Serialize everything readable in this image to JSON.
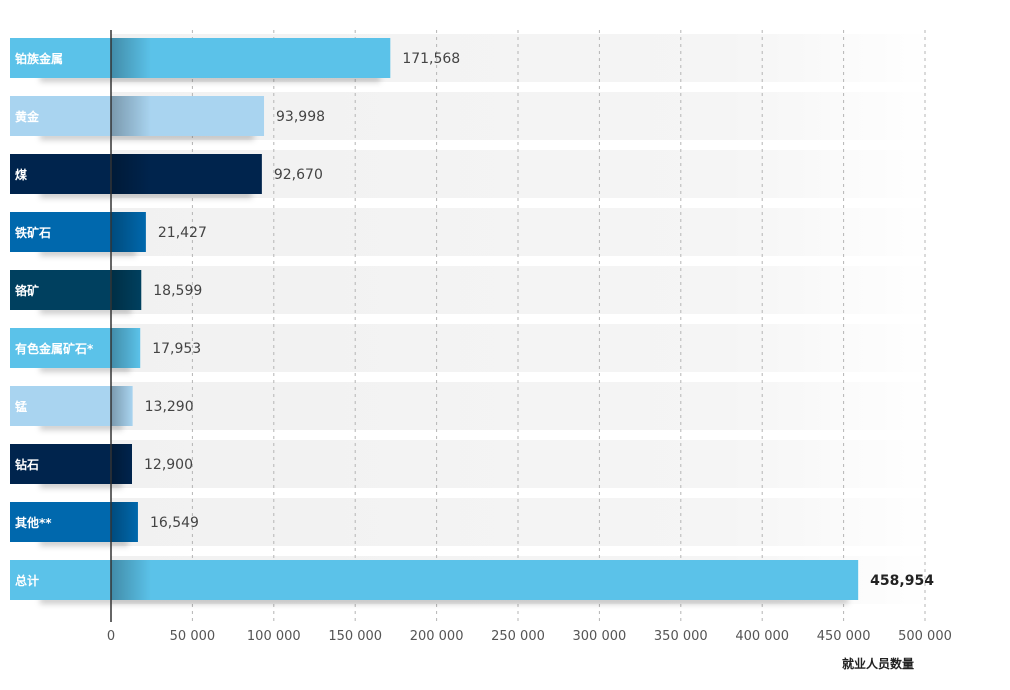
{
  "chart_data": {
    "type": "bar",
    "orientation": "horizontal",
    "title": "",
    "xlabel": "就业人员数量",
    "ylabel": "",
    "xlim": [
      0,
      500000
    ],
    "xticks": [
      0,
      50000,
      100000,
      150000,
      200000,
      250000,
      300000,
      350000,
      400000,
      450000,
      500000
    ],
    "xtick_labels": [
      "0",
      "50 000",
      "100 000",
      "150 000",
      "200 000",
      "250 000",
      "300 000",
      "350 000",
      "400 000",
      "450 000",
      "500 000"
    ],
    "grid": "vertical-dashed",
    "categories": [
      "铂族金属",
      "黄金",
      "煤",
      "铁矿石",
      "铬矿",
      "有色金属矿石*",
      "锰",
      "钻石",
      "其他**",
      "总计"
    ],
    "values": [
      171568,
      93998,
      92670,
      21427,
      18599,
      17953,
      13290,
      12900,
      16549,
      458954
    ],
    "value_labels": [
      "171,568",
      "93,998",
      "92,670",
      "21,427",
      "18,599",
      "17,953",
      "13,290",
      "12,900",
      "16,549",
      "458,954"
    ],
    "colors": [
      "#5bc2e9",
      "#a9d4f0",
      "#00244d",
      "#0068ad",
      "#00405f",
      "#5bc2e9",
      "#a9d4f0",
      "#00244d",
      "#0068ad",
      "#5bc2e9"
    ],
    "highlight_last": true
  }
}
